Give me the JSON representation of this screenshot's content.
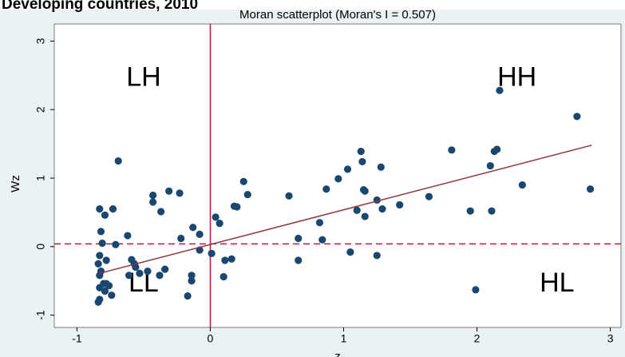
{
  "chart_data": {
    "type": "scatter",
    "header": "Developing countries, 2010",
    "title": "Moran scatterplot (Moran's I = 0.507)",
    "xlabel": "z",
    "ylabel": "Wz",
    "xlim": [
      -1.17,
      3.08
    ],
    "ylim": [
      -1.18,
      3.25
    ],
    "xticks": [
      -1,
      0,
      1,
      2,
      3
    ],
    "yticks": [
      -1,
      0,
      1,
      2,
      3
    ],
    "color": "#1a476f",
    "ref_color": "#c8143c",
    "fit_color": "#90353b",
    "xline": 0,
    "yline": 0.04,
    "fit_line": {
      "x": [
        -0.83,
        2.86
      ],
      "y": [
        -0.39,
        1.48
      ]
    },
    "quadrant_labels": [
      "LH",
      "HH",
      "LL",
      "HL"
    ],
    "x": [
      -0.82,
      -0.83,
      -0.82,
      -0.81,
      -0.83,
      -0.84,
      -0.83,
      -0.8,
      -0.79,
      -0.83,
      -0.84,
      -0.78,
      -0.76,
      -0.74,
      -0.73,
      -0.69,
      -0.71,
      -0.79,
      -0.78,
      -0.83,
      -0.62,
      -0.61,
      -0.59,
      -0.57,
      -0.56,
      -0.53,
      -0.47,
      -0.43,
      -0.43,
      -0.37,
      -0.38,
      -0.34,
      -0.31,
      -0.23,
      -0.22,
      -0.17,
      -0.14,
      -0.14,
      -0.13,
      -0.08,
      -0.08,
      0.01,
      0.04,
      0.07,
      0.1,
      0.11,
      0.16,
      0.18,
      0.2,
      0.25,
      0.28,
      0.59,
      0.66,
      0.66,
      0.82,
      0.84,
      0.87,
      0.96,
      1.03,
      1.05,
      1.1,
      1.13,
      1.14,
      1.15,
      1.16,
      1.16,
      1.25,
      1.28,
      1.25,
      1.29,
      1.42,
      1.64,
      1.81,
      1.95,
      1.99,
      2.1,
      2.11,
      2.13,
      2.15,
      2.17,
      2.34,
      2.75,
      2.85
    ],
    "y": [
      -0.36,
      0.55,
      0.22,
      0.05,
      -0.13,
      -0.25,
      -0.42,
      -0.54,
      -0.65,
      -0.77,
      -0.81,
      -0.2,
      -0.57,
      -0.71,
      0.55,
      1.25,
      0.03,
      0.46,
      -0.54,
      -0.6,
      0.16,
      -0.42,
      -0.19,
      -0.25,
      -0.3,
      -0.39,
      -0.36,
      0.75,
      0.65,
      0.51,
      -0.42,
      -0.33,
      0.81,
      0.78,
      0.12,
      -0.72,
      -0.42,
      -0.5,
      0.28,
      0.18,
      -0.05,
      -0.1,
      0.43,
      0.34,
      -0.44,
      -0.2,
      -0.18,
      0.59,
      0.58,
      0.95,
      0.76,
      0.74,
      0.12,
      -0.2,
      0.35,
      0.1,
      0.84,
      0.99,
      1.13,
      -0.08,
      0.53,
      1.39,
      1.24,
      0.83,
      0.81,
      0.44,
      -0.13,
      1.16,
      0.68,
      0.55,
      0.61,
      0.73,
      1.41,
      0.52,
      -0.63,
      1.18,
      0.52,
      1.39,
      1.42,
      2.28,
      0.9,
      1.9,
      0.84
    ]
  }
}
